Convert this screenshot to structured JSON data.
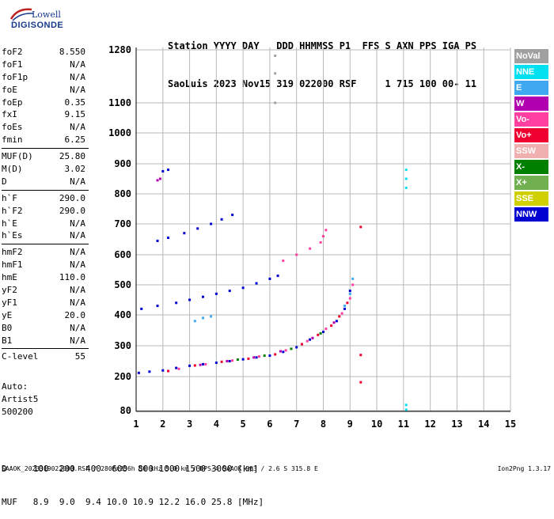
{
  "logo": {
    "brand_top": "Lowell",
    "brand_bottom": "DIGISONDE"
  },
  "header": {
    "labels": "Station YYYY DAY   DDD HHMMSS P1  FFS S AXN PPS IGA PS",
    "values": "SaoLuis 2023 Nov15 319 022000 RSF     1 715 100 00- 11"
  },
  "params_group1": [
    {
      "key": "foF2",
      "value": "8.550"
    },
    {
      "key": "foF1",
      "value": "N/A"
    },
    {
      "key": "foF1p",
      "value": "N/A"
    },
    {
      "key": "foE",
      "value": "N/A"
    },
    {
      "key": "foEp",
      "value": "0.35"
    },
    {
      "key": "fxI",
      "value": "9.15"
    },
    {
      "key": "foEs",
      "value": "N/A"
    },
    {
      "key": "fmin",
      "value": "6.25"
    }
  ],
  "params_group2": [
    {
      "key": "MUF(D)",
      "value": "25.80"
    },
    {
      "key": "M(D)",
      "value": "3.02"
    },
    {
      "key": "D",
      "value": "N/A"
    }
  ],
  "params_group3": [
    {
      "key": "h`F",
      "value": "290.0"
    },
    {
      "key": "h`F2",
      "value": "290.0"
    },
    {
      "key": "h`E",
      "value": "N/A"
    },
    {
      "key": "h`Es",
      "value": "N/A"
    }
  ],
  "params_group4": [
    {
      "key": "hmF2",
      "value": "N/A"
    },
    {
      "key": "hmF1",
      "value": "N/A"
    },
    {
      "key": "hmE",
      "value": "110.0"
    },
    {
      "key": "yF2",
      "value": "N/A"
    },
    {
      "key": "yF1",
      "value": "N/A"
    },
    {
      "key": "yE",
      "value": "20.0"
    },
    {
      "key": "B0",
      "value": "N/A"
    },
    {
      "key": "B1",
      "value": "N/A"
    }
  ],
  "params_group5": [
    {
      "key": "C-level",
      "value": "55"
    }
  ],
  "auto": {
    "line1": "Auto:",
    "line2": "Artist5",
    "line3": "500200"
  },
  "legend": [
    {
      "label": "NoVal",
      "color": "#a0a0a0"
    },
    {
      "label": "NNE",
      "color": "#00e0f0"
    },
    {
      "label": "E",
      "color": "#40a8f0"
    },
    {
      "label": "W",
      "color": "#b000b0"
    },
    {
      "label": "Vo-",
      "color": "#ff40a0"
    },
    {
      "label": "Vo+",
      "color": "#f00030"
    },
    {
      "label": "SSW",
      "color": "#f0b0b0"
    },
    {
      "label": "X-",
      "color": "#008000"
    },
    {
      "label": "X+",
      "color": "#70b050"
    },
    {
      "label": "SSE",
      "color": "#d0d000"
    },
    {
      "label": "NNW",
      "color": "#0000d0"
    }
  ],
  "muf_table": {
    "d_row": "D     100  200  400  600  800 1000 1500 3000 [km]",
    "muf_row": "MUF   8.9  9.0  9.4 10.0 10.9 12.2 16.0 25.8 [MHz]"
  },
  "footer": {
    "text": "SAAOK_2023319022000.RSF / 280fx256h 50 kHz 5.0 km / DPS-4 SAAOK 903 / 2.6 S 315.8 E",
    "version": "Ion2Png 1.3.17"
  },
  "chart_data": {
    "type": "scatter",
    "x_ticks": [
      "1",
      "2",
      "3",
      "4",
      "5",
      "6",
      "7",
      "8",
      "9",
      "10",
      "11",
      "12",
      "13",
      "14",
      "15"
    ],
    "y_ticks": [
      "80",
      "200",
      "300",
      "400",
      "500",
      "600",
      "700",
      "800",
      "900",
      "1000",
      "1100",
      "1280"
    ],
    "xlim": [
      1,
      15
    ],
    "ylim": [
      80,
      1280
    ],
    "series": [
      {
        "color": "#0000d0",
        "points": [
          [
            1.1,
            212
          ],
          [
            1.5,
            216
          ],
          [
            2,
            220
          ],
          [
            2.5,
            228
          ],
          [
            3,
            235
          ],
          [
            3.5,
            240
          ],
          [
            4,
            245
          ],
          [
            4.5,
            250
          ],
          [
            5,
            256
          ],
          [
            5.5,
            262
          ],
          [
            6,
            268
          ],
          [
            6.5,
            280
          ],
          [
            7,
            295
          ],
          [
            7.5,
            320
          ],
          [
            8,
            345
          ],
          [
            8.5,
            380
          ],
          [
            8.8,
            420
          ],
          [
            9,
            480
          ]
        ]
      },
      {
        "color": "#f00030",
        "points": [
          [
            2.2,
            218
          ],
          [
            3.2,
            236
          ],
          [
            4.2,
            248
          ],
          [
            5.2,
            258
          ],
          [
            6.2,
            272
          ],
          [
            7.2,
            305
          ],
          [
            7.8,
            335
          ],
          [
            8.3,
            365
          ],
          [
            8.6,
            395
          ],
          [
            8.9,
            440
          ]
        ]
      },
      {
        "color": "#ff40a0",
        "points": [
          [
            2.6,
            225
          ],
          [
            3.6,
            240
          ],
          [
            4.6,
            252
          ],
          [
            5.6,
            265
          ],
          [
            6.6,
            285
          ],
          [
            7.4,
            315
          ],
          [
            8.1,
            355
          ],
          [
            8.7,
            405
          ],
          [
            9,
            455
          ],
          [
            9.1,
            500
          ]
        ]
      },
      {
        "color": "#b000b0",
        "points": [
          [
            3.4,
            238
          ],
          [
            4.4,
            250
          ],
          [
            5.4,
            262
          ],
          [
            6.4,
            282
          ],
          [
            7.6,
            325
          ],
          [
            8.4,
            375
          ]
        ]
      },
      {
        "color": "#008000",
        "points": [
          [
            4.8,
            255
          ],
          [
            5.8,
            268
          ],
          [
            6.8,
            290
          ],
          [
            7.9,
            340
          ]
        ]
      },
      {
        "color": "#40a8f0",
        "points": [
          [
            8.8,
            430
          ],
          [
            9,
            470
          ],
          [
            9.1,
            520
          ],
          [
            3.2,
            380
          ],
          [
            3.5,
            390
          ],
          [
            3.8,
            395
          ]
        ]
      },
      {
        "color": "#0000d0",
        "points": [
          [
            1.2,
            420
          ],
          [
            1.8,
            430
          ],
          [
            2.5,
            440
          ],
          [
            3,
            450
          ],
          [
            3.5,
            460
          ],
          [
            4,
            470
          ],
          [
            4.5,
            480
          ],
          [
            5,
            490
          ],
          [
            5.5,
            505
          ],
          [
            6,
            520
          ],
          [
            6.3,
            530
          ]
        ]
      },
      {
        "color": "#ff40a0",
        "points": [
          [
            6.5,
            580
          ],
          [
            7,
            600
          ],
          [
            7.5,
            620
          ],
          [
            7.9,
            640
          ],
          [
            8,
            660
          ],
          [
            8.1,
            680
          ]
        ]
      },
      {
        "color": "#0000d0",
        "points": [
          [
            1.8,
            645
          ],
          [
            2.2,
            655
          ],
          [
            2.8,
            670
          ],
          [
            3.3,
            685
          ],
          [
            3.8,
            700
          ],
          [
            4.2,
            715
          ],
          [
            4.6,
            730
          ]
        ]
      },
      {
        "color": "#b000b0",
        "points": [
          [
            1.8,
            845
          ],
          [
            1.9,
            850
          ]
        ]
      },
      {
        "color": "#0000d0",
        "points": [
          [
            2,
            875
          ],
          [
            2.2,
            880
          ]
        ]
      },
      {
        "color": "#00e0f0",
        "points": [
          [
            11.1,
            820
          ],
          [
            11.1,
            850
          ],
          [
            11.1,
            880
          ],
          [
            11.1,
            83
          ],
          [
            11.1,
            100
          ]
        ]
      },
      {
        "color": "#f00030",
        "points": [
          [
            9.4,
            690
          ],
          [
            9.4,
            270
          ],
          [
            9.4,
            180
          ]
        ]
      },
      {
        "color": "#a0a0a0",
        "points": [
          [
            6.2,
            1100
          ],
          [
            6.2,
            1200
          ],
          [
            6.2,
            1260
          ]
        ]
      }
    ]
  }
}
